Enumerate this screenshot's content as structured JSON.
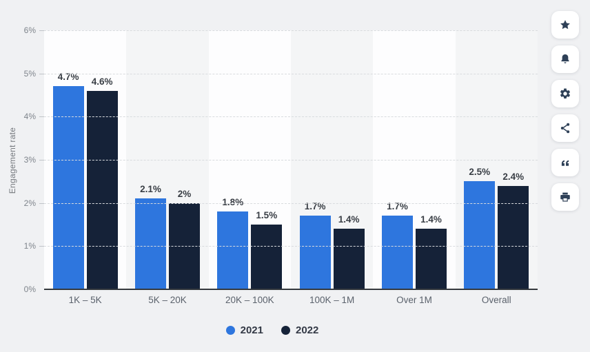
{
  "page": {
    "background": "#f0f1f3"
  },
  "chart_data": {
    "type": "bar",
    "title": "",
    "xlabel": "",
    "ylabel": "Engagement rate",
    "categories": [
      "1K – 5K",
      "5K – 20K",
      "20K – 100K",
      "100K – 1M",
      "Over 1M",
      "Overall"
    ],
    "series": [
      {
        "name": "2021",
        "color": "#2e76de",
        "values": [
          4.7,
          2.1,
          1.8,
          1.7,
          1.7,
          2.5
        ],
        "labels": [
          "4.7%",
          "2.1%",
          "1.8%",
          "1.7%",
          "1.7%",
          "2.5%"
        ]
      },
      {
        "name": "2022",
        "color": "#152238",
        "values": [
          4.6,
          2.0,
          1.5,
          1.4,
          1.4,
          2.4
        ],
        "labels": [
          "4.6%",
          "2%",
          "1.5%",
          "1.4%",
          "1.4%",
          "2.4%"
        ]
      }
    ],
    "ylim": [
      0,
      6
    ],
    "ytick_values": [
      0,
      1,
      2,
      3,
      4,
      5,
      6
    ],
    "ytick_labels": [
      "0%",
      "1%",
      "2%",
      "3%",
      "4%",
      "5%",
      "6%"
    ],
    "grid": true,
    "legend_position": "bottom",
    "plot_band_colors": [
      "#fdfdfe",
      "#f4f5f6"
    ]
  },
  "sidebar": {
    "icon_color": "#2e4057",
    "buttons": [
      {
        "name": "favorite-button",
        "icon": "star-icon"
      },
      {
        "name": "notifications-button",
        "icon": "bell-icon"
      },
      {
        "name": "settings-button",
        "icon": "gear-icon"
      },
      {
        "name": "share-button",
        "icon": "share-icon"
      },
      {
        "name": "cite-button",
        "icon": "quote-icon"
      },
      {
        "name": "print-button",
        "icon": "printer-icon"
      }
    ]
  }
}
